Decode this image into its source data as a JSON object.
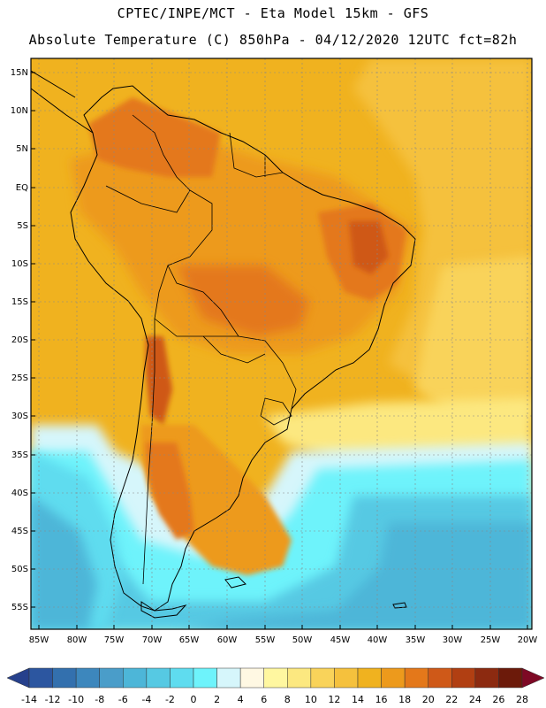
{
  "header": {
    "title_line1": "CPTEC/INPE/MCT  -   Eta Model 15km - GFS",
    "title_line2": "Absolute Temperature (C) 850hPa - 04/12/2020 12UTC fct=82h"
  },
  "map": {
    "lat_labels": [
      "15N",
      "10N",
      "5N",
      "EQ",
      "5S",
      "10S",
      "15S",
      "20S",
      "25S",
      "30S",
      "35S",
      "40S",
      "45S",
      "50S",
      "55S"
    ],
    "lon_labels": [
      "85W",
      "80W",
      "75W",
      "70W",
      "65W",
      "60W",
      "55W",
      "50W",
      "45W",
      "40W",
      "35W",
      "30W",
      "25W",
      "20W"
    ],
    "background_color": "#f0b21f"
  },
  "colorbar": {
    "labels": [
      "-14",
      "-12",
      "-10",
      "-8",
      "-6",
      "-4",
      "-2",
      "0",
      "2",
      "4",
      "6",
      "8",
      "10",
      "12",
      "14",
      "16",
      "18",
      "20",
      "22",
      "24",
      "26",
      "28"
    ],
    "colors": [
      "#26408c",
      "#2c56a0",
      "#3370ae",
      "#3d87bd",
      "#4a9dc9",
      "#4db6d8",
      "#56c9e3",
      "#5fdcef",
      "#6ef3fb",
      "#d6f6fb",
      "#fff8e3",
      "#fff7a0",
      "#fce880",
      "#f9d35a",
      "#f5c13d",
      "#f0b21f",
      "#ed9a1c",
      "#e4781a",
      "#cf5918",
      "#b13f12",
      "#8c2a10",
      "#6c1a0a",
      "#7e0925"
    ]
  }
}
